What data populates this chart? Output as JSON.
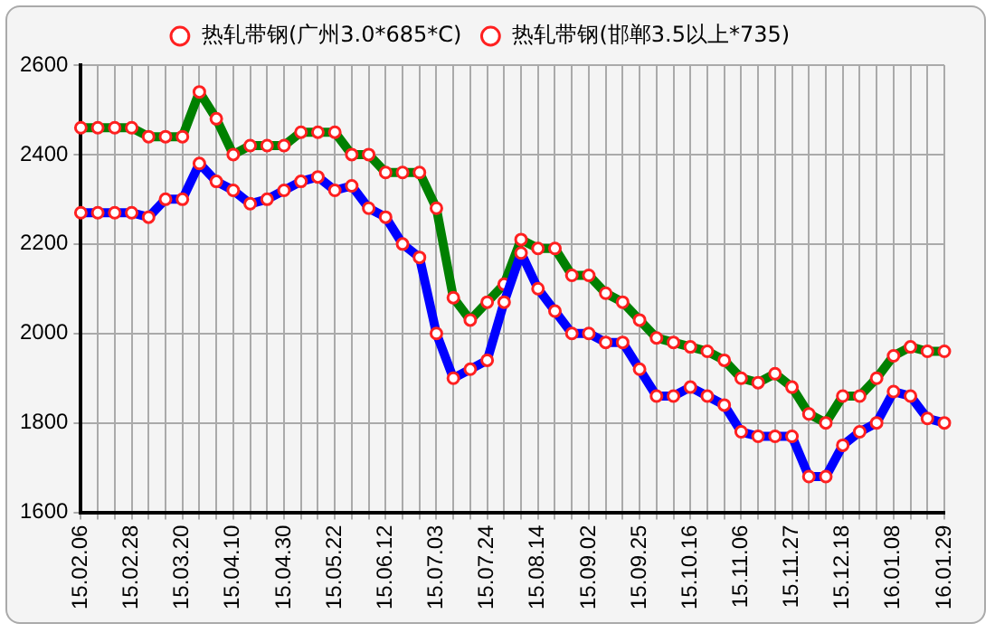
{
  "chart_data": {
    "type": "line",
    "categories": [
      "15.02.06",
      null,
      null,
      "15.02.28",
      null,
      null,
      "15.03.20",
      null,
      null,
      "15.04.10",
      null,
      null,
      "15.04.30",
      null,
      null,
      "15.05.22",
      null,
      null,
      "15.06.12",
      null,
      null,
      "15.07.03",
      null,
      null,
      "15.07.24",
      null,
      null,
      "15.08.14",
      null,
      null,
      "15.09.02",
      null,
      null,
      "15.09.25",
      null,
      null,
      "15.10.16",
      null,
      null,
      "15.11.06",
      null,
      null,
      "15.11.27",
      null,
      null,
      "15.12.18",
      null,
      null,
      "16.01.08",
      null,
      null,
      "16.01.29"
    ],
    "series": [
      {
        "name": "热轧带钢(广州3.0*685*C)",
        "color": "#008000",
        "values": [
          2460,
          2460,
          2460,
          2460,
          2440,
          2440,
          2440,
          2540,
          2480,
          2400,
          2420,
          2420,
          2420,
          2450,
          2450,
          2450,
          2400,
          2400,
          2360,
          2360,
          2360,
          2280,
          2080,
          2030,
          2070,
          2110,
          2210,
          2190,
          2190,
          2130,
          2130,
          2090,
          2070,
          2030,
          1990,
          1980,
          1970,
          1960,
          1940,
          1900,
          1890,
          1910,
          1880,
          1820,
          1800,
          1860,
          1860,
          1900,
          1950,
          1970,
          1960,
          1960
        ]
      },
      {
        "name": "热轧带钢(邯郸3.5以上*735)",
        "color": "#0000ff",
        "values": [
          2270,
          2270,
          2270,
          2270,
          2260,
          2300,
          2300,
          2380,
          2340,
          2320,
          2290,
          2300,
          2320,
          2340,
          2350,
          2320,
          2330,
          2280,
          2260,
          2200,
          2170,
          2000,
          1900,
          1920,
          1940,
          2070,
          2180,
          2100,
          2050,
          2000,
          2000,
          1980,
          1980,
          1920,
          1860,
          1860,
          1880,
          1860,
          1840,
          1780,
          1770,
          1770,
          1770,
          1680,
          1680,
          1750,
          1780,
          1800,
          1870,
          1860,
          1810,
          1800
        ]
      }
    ],
    "ylim": [
      1600,
      2600
    ],
    "yticks": [
      1600,
      1800,
      2000,
      2200,
      2400,
      2600
    ],
    "grid": true,
    "legend": "top",
    "marker": "circle",
    "line_style": "solid"
  }
}
